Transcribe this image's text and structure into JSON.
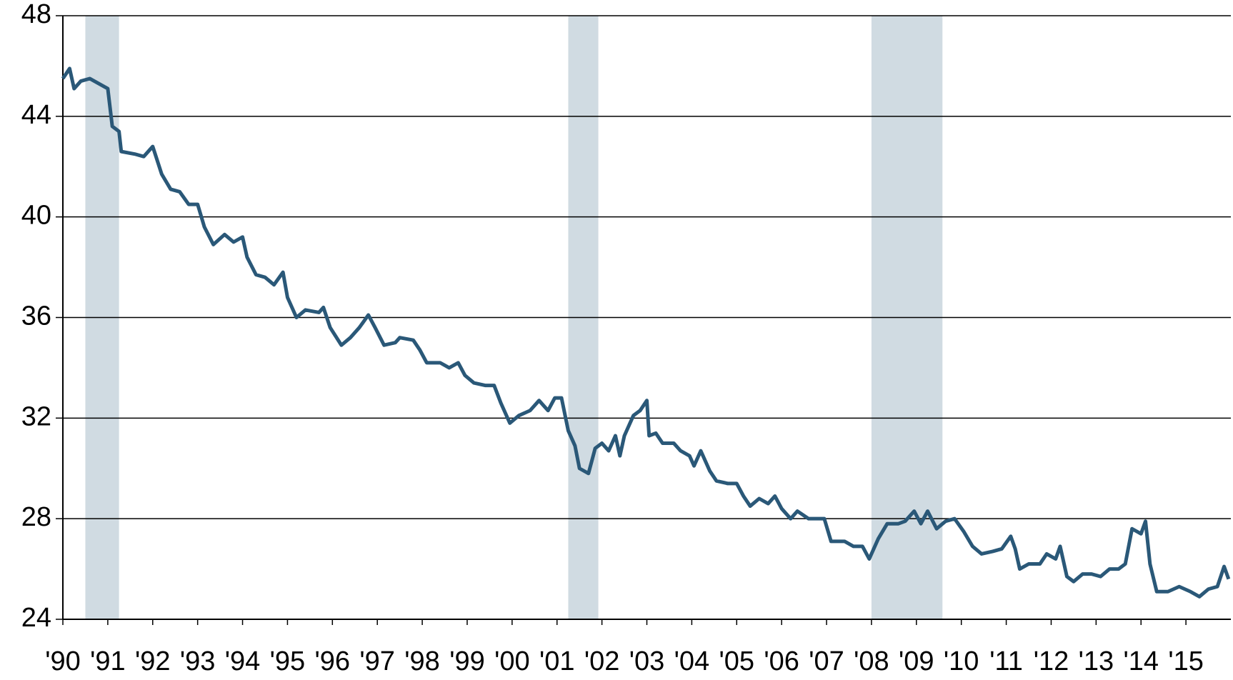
{
  "chart_data": {
    "type": "line",
    "x": [
      1990.0,
      1990.15,
      1990.25,
      1990.4,
      1990.6,
      1990.8,
      1991.0,
      1991.1,
      1991.25,
      1991.3,
      1991.6,
      1991.8,
      1992.0,
      1992.2,
      1992.4,
      1992.6,
      1992.8,
      1993.0,
      1993.15,
      1993.35,
      1993.6,
      1993.8,
      1994.0,
      1994.1,
      1994.3,
      1994.5,
      1994.7,
      1994.9,
      1995.0,
      1995.2,
      1995.4,
      1995.7,
      1995.8,
      1995.95,
      1996.2,
      1996.4,
      1996.6,
      1996.8,
      1996.95,
      1997.15,
      1997.4,
      1997.5,
      1997.8,
      1997.95,
      1998.1,
      1998.4,
      1998.6,
      1998.8,
      1998.95,
      1999.15,
      1999.4,
      1999.6,
      1999.75,
      1999.95,
      2000.15,
      2000.4,
      2000.6,
      2000.8,
      2000.95,
      2001.1,
      2001.25,
      2001.4,
      2001.5,
      2001.7,
      2001.85,
      2002.0,
      2002.15,
      2002.3,
      2002.4,
      2002.5,
      2002.7,
      2002.85,
      2003.0,
      2003.05,
      2003.2,
      2003.35,
      2003.6,
      2003.75,
      2003.95,
      2004.05,
      2004.2,
      2004.4,
      2004.55,
      2004.8,
      2005.0,
      2005.15,
      2005.3,
      2005.5,
      2005.7,
      2005.85,
      2006.0,
      2006.2,
      2006.35,
      2006.6,
      2006.8,
      2006.95,
      2007.1,
      2007.4,
      2007.6,
      2007.8,
      2007.95,
      2008.15,
      2008.35,
      2008.6,
      2008.75,
      2008.95,
      2009.1,
      2009.25,
      2009.45,
      2009.65,
      2009.85,
      2010.05,
      2010.25,
      2010.45,
      2010.7,
      2010.9,
      2011.1,
      2011.2,
      2011.3,
      2011.5,
      2011.75,
      2011.9,
      2012.1,
      2012.2,
      2012.35,
      2012.5,
      2012.7,
      2012.9,
      2013.1,
      2013.3,
      2013.5,
      2013.65,
      2013.8,
      2014.0,
      2014.1,
      2014.2,
      2014.35,
      2014.6,
      2014.85,
      2015.1,
      2015.3,
      2015.5,
      2015.7,
      2015.85,
      2015.95
    ],
    "values": [
      45.5,
      45.9,
      45.1,
      45.4,
      45.5,
      45.3,
      45.1,
      43.6,
      43.4,
      42.6,
      42.5,
      42.4,
      42.8,
      41.7,
      41.1,
      41.0,
      40.5,
      40.5,
      39.6,
      38.9,
      39.3,
      39.0,
      39.2,
      38.4,
      37.7,
      37.6,
      37.3,
      37.8,
      36.8,
      36.0,
      36.3,
      36.2,
      36.4,
      35.6,
      34.9,
      35.2,
      35.6,
      36.1,
      35.6,
      34.9,
      35.0,
      35.2,
      35.1,
      34.7,
      34.2,
      34.2,
      34.0,
      34.2,
      33.7,
      33.4,
      33.3,
      33.3,
      32.6,
      31.8,
      32.1,
      32.3,
      32.7,
      32.3,
      32.8,
      32.8,
      31.5,
      30.9,
      30.0,
      29.8,
      30.8,
      31.0,
      30.7,
      31.3,
      30.5,
      31.3,
      32.1,
      32.3,
      32.7,
      31.3,
      31.4,
      31.0,
      31.0,
      30.7,
      30.5,
      30.1,
      30.7,
      29.9,
      29.5,
      29.4,
      29.4,
      28.9,
      28.5,
      28.8,
      28.6,
      28.9,
      28.4,
      28.0,
      28.3,
      28.0,
      28.0,
      28.0,
      27.1,
      27.1,
      26.9,
      26.9,
      26.4,
      27.2,
      27.8,
      27.8,
      27.9,
      28.3,
      27.8,
      28.3,
      27.6,
      27.9,
      28.0,
      27.5,
      26.9,
      26.6,
      26.7,
      26.8,
      27.3,
      26.8,
      26.0,
      26.2,
      26.2,
      26.6,
      26.4,
      26.9,
      25.7,
      25.5,
      25.8,
      25.8,
      25.7,
      26.0,
      26.0,
      26.2,
      27.6,
      27.4,
      27.9,
      26.2,
      25.1,
      25.1,
      25.3,
      25.1,
      24.9,
      25.2,
      25.3,
      26.1,
      25.6
    ],
    "color": "#2a5878",
    "shaded_regions": [
      [
        1990.5,
        1991.25
      ],
      [
        2001.25,
        2001.92
      ],
      [
        2008.0,
        2009.58
      ]
    ],
    "shade_color": "#d0dbe2",
    "xlim": [
      1990,
      2016
    ],
    "xticks": [
      {
        "value": 1990,
        "label": "'90"
      },
      {
        "value": 1991,
        "label": "'91"
      },
      {
        "value": 1992,
        "label": "'92"
      },
      {
        "value": 1993,
        "label": "'93"
      },
      {
        "value": 1994,
        "label": "'94"
      },
      {
        "value": 1995,
        "label": "'95"
      },
      {
        "value": 1996,
        "label": "'96"
      },
      {
        "value": 1997,
        "label": "'97"
      },
      {
        "value": 1998,
        "label": "'98"
      },
      {
        "value": 1999,
        "label": "'99"
      },
      {
        "value": 2000,
        "label": "'00"
      },
      {
        "value": 2001,
        "label": "'01"
      },
      {
        "value": 2002,
        "label": "'02"
      },
      {
        "value": 2003,
        "label": "'03"
      },
      {
        "value": 2004,
        "label": "'04"
      },
      {
        "value": 2005,
        "label": "'05"
      },
      {
        "value": 2006,
        "label": "'06"
      },
      {
        "value": 2007,
        "label": "'07"
      },
      {
        "value": 2008,
        "label": "'08"
      },
      {
        "value": 2009,
        "label": "'09"
      },
      {
        "value": 2010,
        "label": "'10"
      },
      {
        "value": 2011,
        "label": "'11"
      },
      {
        "value": 2012,
        "label": "'12"
      },
      {
        "value": 2013,
        "label": "'13"
      },
      {
        "value": 2014,
        "label": "'14"
      },
      {
        "value": 2015,
        "label": "'15"
      }
    ],
    "ylim": [
      24,
      48
    ],
    "yticks": [
      24,
      28,
      32,
      36,
      40,
      44,
      48
    ],
    "grid": true
  }
}
